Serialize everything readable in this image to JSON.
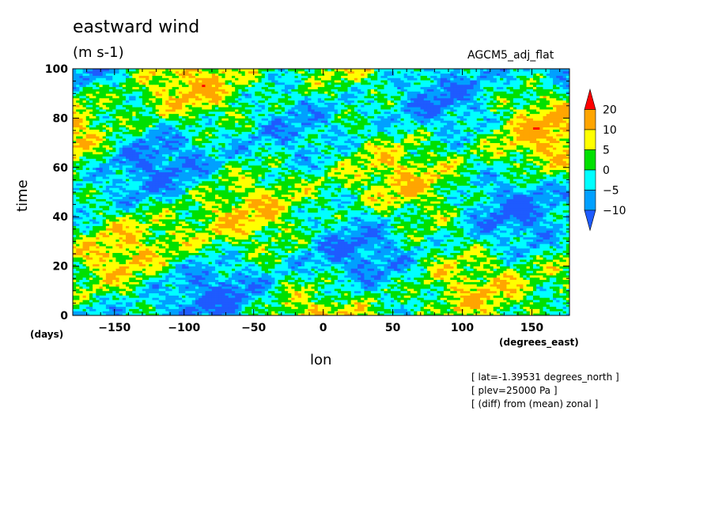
{
  "chart_data": {
    "type": "heatmap",
    "title": "eastward wind",
    "units": "(m s-1)",
    "model_label": "AGCM5_adj_flat",
    "xlabel": "lon",
    "ylabel": "time",
    "xunits": "(degrees_east)",
    "yunits": "(days)",
    "xlim": [
      -180,
      177
    ],
    "ylim": [
      0,
      100
    ],
    "xticks": [
      -150,
      -100,
      -50,
      0,
      50,
      100,
      150
    ],
    "yticks": [
      0,
      20,
      40,
      60,
      80,
      100
    ],
    "colorbar": {
      "levels": [
        -10,
        -5,
        0,
        5,
        10,
        20
      ],
      "labels": [
        "20",
        "10",
        "5",
        "0",
        "-5",
        "-10"
      ],
      "colors": [
        "#1e5bff",
        "#00a0ff",
        "#00ffff",
        "#00e000",
        "#ffff00",
        "#ffa500",
        "#ff0000"
      ]
    },
    "notes": [
      "[ lat=-1.39531 degrees_north ]",
      "[ plev=25000 Pa ]",
      "[ (diff) from (mean) zonal ]"
    ]
  }
}
